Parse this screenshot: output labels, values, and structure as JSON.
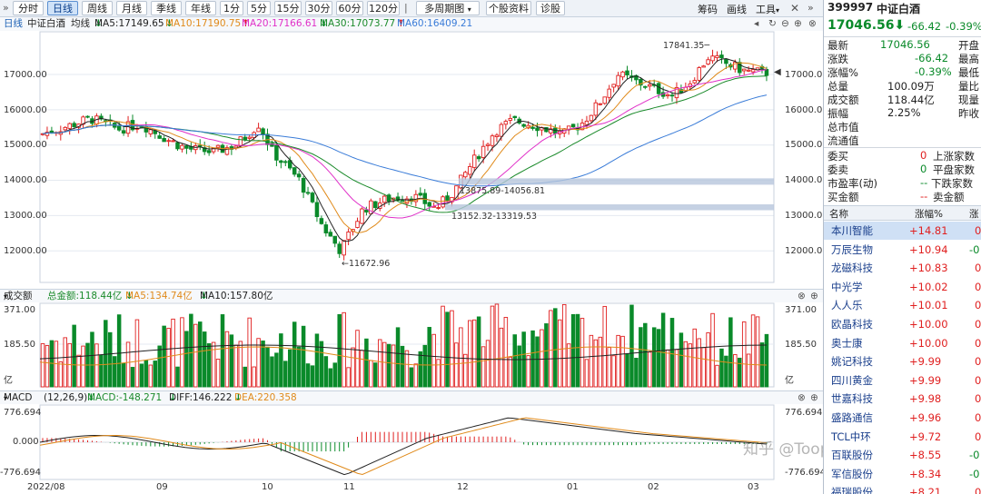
{
  "toolbar": {
    "collapse_icon": "double-chevron-icon",
    "periods": [
      "分时",
      "日线",
      "周线",
      "月线",
      "季线",
      "年线",
      "1分",
      "5分",
      "15分",
      "30分",
      "60分",
      "120分"
    ],
    "active_period": "日线",
    "multi_period": "多周期图",
    "buttons": [
      "个股资料",
      "诊股"
    ],
    "right_menu": [
      "筹码",
      "画线",
      "工具"
    ],
    "collapse_right_icon": "double-chevron-right-icon"
  },
  "kline": {
    "period": "日线",
    "name": "中证白酒",
    "ma_label": "均线",
    "ma": [
      {
        "label": "MA5:17149.65",
        "dir": "down",
        "color": "#222222"
      },
      {
        "label": "MA10:17190.75",
        "dir": "down",
        "color": "#e08a1a"
      },
      {
        "label": "MA20:17166.61",
        "dir": "up",
        "color": "#e030c8"
      },
      {
        "label": "MA30:17073.77",
        "dir": "down",
        "color": "#1a8a2a"
      },
      {
        "label": "MA60:16409.21",
        "dir": "up",
        "color": "#3a7cd8"
      }
    ],
    "yticks": [
      "17000.00",
      "16000.00",
      "15000.00",
      "14000.00",
      "13000.00",
      "12000.00"
    ],
    "annotations": {
      "high": "17841.35",
      "low": "11672.96",
      "zone1": "13875.89-14056.81",
      "zone2": "13152.32-13319.53"
    },
    "last_price_marker": "◀"
  },
  "volume": {
    "title": "成交额",
    "total": "总金额:118.44亿",
    "ma5": "MA5:134.74亿",
    "ma10": "MA10:157.80亿",
    "yticks": [
      "371.00",
      "185.50"
    ],
    "unit": "亿"
  },
  "macd": {
    "title": "MACD",
    "params": "(12,26,9)",
    "macd": "MACD:-148.271",
    "diff": "DIFF:146.222",
    "dea": "DEA:220.358",
    "yticks": [
      "776.694",
      "0.000",
      "-776.694"
    ]
  },
  "xaxis": [
    "2022/08",
    "09",
    "10",
    "11",
    "12",
    "01",
    "02",
    "03"
  ],
  "watermark": "知乎 @ToopView",
  "quote": {
    "code": "399997",
    "name": "中证白酒",
    "price": "17046.56",
    "change": "-66.42",
    "pct": "-0.39%",
    "fields": [
      [
        "最新",
        "17046.56",
        "开盘",
        ""
      ],
      [
        "涨跌",
        "-66.42",
        "最高",
        ""
      ],
      [
        "涨幅%",
        "-0.39%",
        "最低",
        ""
      ],
      [
        "总量",
        "100.09万",
        "量比",
        ""
      ],
      [
        "成交额",
        "118.44亿",
        "现量",
        ""
      ],
      [
        "振幅",
        "2.25%",
        "昨收",
        ""
      ],
      [
        "总市值",
        "",
        "",
        ""
      ],
      [
        "流通值",
        "",
        "",
        ""
      ]
    ],
    "breadth": [
      [
        "委买",
        "0",
        "上涨家数"
      ],
      [
        "委卖",
        "0",
        "平盘家数"
      ],
      [
        "市盈率(动)",
        "--",
        "下跌家数"
      ],
      [
        "买金额",
        "--",
        "卖金额"
      ]
    ]
  },
  "list": {
    "headers": [
      "名称",
      "涨幅%",
      "涨"
    ],
    "rows": [
      {
        "name": "本川智能",
        "pct": "+14.81",
        "tail": "0"
      },
      {
        "name": "万辰生物",
        "pct": "+10.94",
        "tail": "-0"
      },
      {
        "name": "龙磁科技",
        "pct": "+10.83",
        "tail": "0"
      },
      {
        "name": "中光学",
        "pct": "+10.02",
        "tail": "0"
      },
      {
        "name": "人人乐",
        "pct": "+10.01",
        "tail": "0"
      },
      {
        "name": "欧晶科技",
        "pct": "+10.00",
        "tail": "0"
      },
      {
        "name": "奥士康",
        "pct": "+10.00",
        "tail": "0"
      },
      {
        "name": "姚记科技",
        "pct": "+9.99",
        "tail": "0"
      },
      {
        "name": "四川黄金",
        "pct": "+9.99",
        "tail": "0"
      },
      {
        "name": "世嘉科技",
        "pct": "+9.98",
        "tail": "0"
      },
      {
        "name": "盛路通信",
        "pct": "+9.96",
        "tail": "0"
      },
      {
        "name": "TCL中环",
        "pct": "+9.72",
        "tail": "0"
      },
      {
        "name": "百联股份",
        "pct": "+8.55",
        "tail": "-0"
      },
      {
        "name": "军信股份",
        "pct": "+8.34",
        "tail": "-0"
      },
      {
        "name": "福瑞股份",
        "pct": "+8.21",
        "tail": "0"
      }
    ]
  }
}
